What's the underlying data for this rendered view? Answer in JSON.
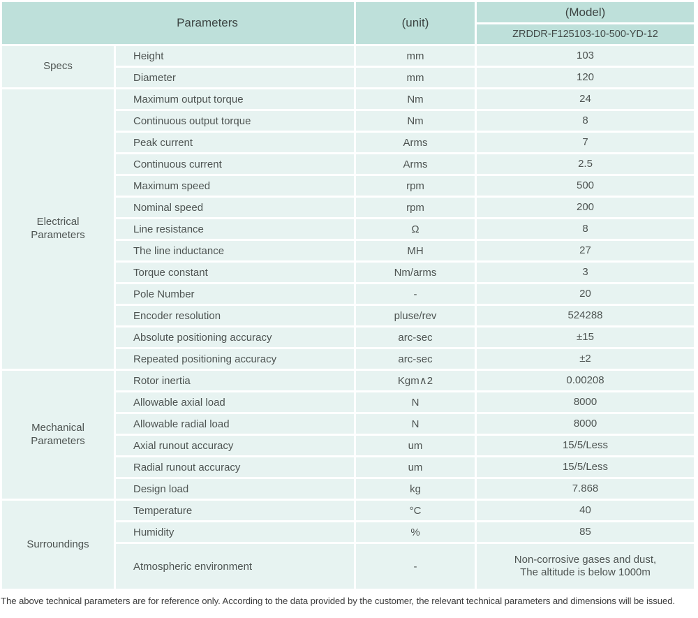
{
  "header": {
    "parameters_label": "Parameters",
    "unit_label": "(unit)",
    "model_label": "(Model)",
    "model_value": "ZRDDR-F125103-10-500-YD-12"
  },
  "sections": [
    {
      "category": "Specs",
      "rows": [
        {
          "parameter": "Height",
          "unit": "mm",
          "value": "103"
        },
        {
          "parameter": "Diameter",
          "unit": "mm",
          "value": "120"
        }
      ]
    },
    {
      "category": "Electrical\nParameters",
      "rows": [
        {
          "parameter": "Maximum output torque",
          "unit": "Nm",
          "value": "24"
        },
        {
          "parameter": "Continuous output torque",
          "unit": "Nm",
          "value": "8"
        },
        {
          "parameter": "Peak current",
          "unit": "Arms",
          "value": "7"
        },
        {
          "parameter": "Continuous current",
          "unit": "Arms",
          "value": "2.5"
        },
        {
          "parameter": "Maximum speed",
          "unit": "rpm",
          "value": "500"
        },
        {
          "parameter": "Nominal speed",
          "unit": "rpm",
          "value": "200"
        },
        {
          "parameter": "Line resistance",
          "unit": "Ω",
          "value": "8"
        },
        {
          "parameter": "The line inductance",
          "unit": "MH",
          "value": "27"
        },
        {
          "parameter": "Torque constant",
          "unit": "Nm/arms",
          "value": "3"
        },
        {
          "parameter": "Pole Number",
          "unit": "-",
          "value": "20"
        },
        {
          "parameter": "Encoder resolution",
          "unit": "pluse/rev",
          "value": "524288"
        },
        {
          "parameter": "Absolute positioning accuracy",
          "unit": "arc-sec",
          "value": "±15"
        },
        {
          "parameter": "Repeated positioning accuracy",
          "unit": "arc-sec",
          "value": "±2"
        }
      ]
    },
    {
      "category": "Mechanical\nParameters",
      "rows": [
        {
          "parameter": "Rotor inertia",
          "unit": "Kgm∧2",
          "value": "0.00208"
        },
        {
          "parameter": "Allowable axial load",
          "unit": "N",
          "value": "8000"
        },
        {
          "parameter": "Allowable radial load",
          "unit": "N",
          "value": "8000"
        },
        {
          "parameter": "Axial runout accuracy",
          "unit": "um",
          "value": "15/5/Less"
        },
        {
          "parameter": "Radial runout accuracy",
          "unit": "um",
          "value": "15/5/Less"
        },
        {
          "parameter": "Design load",
          "unit": "kg",
          "value": "7.868"
        }
      ]
    },
    {
      "category": "Surroundings",
      "rows": [
        {
          "parameter": "Temperature",
          "unit": "°C",
          "value": "40"
        },
        {
          "parameter": "Humidity",
          "unit": "%",
          "value": "85"
        },
        {
          "parameter": "Atmospheric environment",
          "unit": "-",
          "value": "Non-corrosive gases and dust,\nThe altitude is below 1000m",
          "tall": true
        }
      ]
    }
  ],
  "footer": {
    "note": "The above technical parameters are for reference only. According to the data provided by the customer, the relevant technical parameters and dimensions will be issued."
  },
  "colors": {
    "header_bg": "#bee0da",
    "cell_bg": "#e7f3f1",
    "text": "#4e5452"
  }
}
